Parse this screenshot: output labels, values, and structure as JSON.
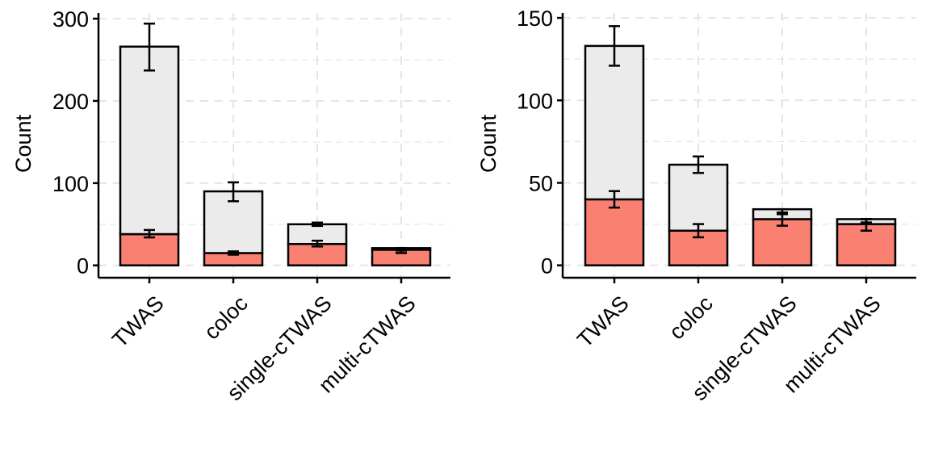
{
  "chart_data": [
    {
      "type": "bar",
      "stacked": true,
      "title": "",
      "xlabel": "",
      "ylabel": "Count",
      "ylim": [
        -15,
        307
      ],
      "yticks": [
        0,
        100,
        200,
        300
      ],
      "grid": true,
      "categories": [
        "TWAS",
        "coloc",
        "single-cTWAS",
        "multi-cTWAS"
      ],
      "series": [
        {
          "values": [
            38,
            15,
            26,
            19
          ],
          "error": [
            [
              34,
              43
            ],
            [
              13,
              17
            ],
            [
              23,
              30
            ],
            [
              15,
              21
            ]
          ]
        },
        {
          "values": [
            228,
            75,
            24,
            2
          ],
          "error": [
            [
              237,
              294
            ],
            [
              78,
              101
            ],
            [
              48,
              52
            ],
            [
              18,
              21
            ]
          ]
        }
      ],
      "totals": [
        266,
        90,
        50,
        21
      ]
    },
    {
      "type": "bar",
      "stacked": true,
      "title": "",
      "xlabel": "",
      "ylabel": "Count",
      "ylim": [
        -7.5,
        153
      ],
      "yticks": [
        0,
        50,
        100,
        150
      ],
      "grid": true,
      "categories": [
        "TWAS",
        "coloc",
        "single-cTWAS",
        "multi-cTWAS"
      ],
      "series": [
        {
          "values": [
            40,
            21,
            28,
            25
          ],
          "error": [
            [
              35,
              45
            ],
            [
              17,
              25
            ],
            [
              24,
              32
            ],
            [
              21,
              28
            ]
          ]
        },
        {
          "values": [
            93,
            40,
            6,
            3
          ],
          "error": [
            [
              121,
              145
            ],
            [
              56,
              66
            ],
            [
              31,
              34
            ],
            [
              26,
              28
            ]
          ]
        }
      ],
      "totals": [
        133,
        61,
        34,
        28
      ]
    }
  ],
  "colors": {
    "bottom_segment": "#fa8072",
    "top_segment": "#ebebeb",
    "outline": "#000000",
    "grid": "#e5e5e5"
  }
}
